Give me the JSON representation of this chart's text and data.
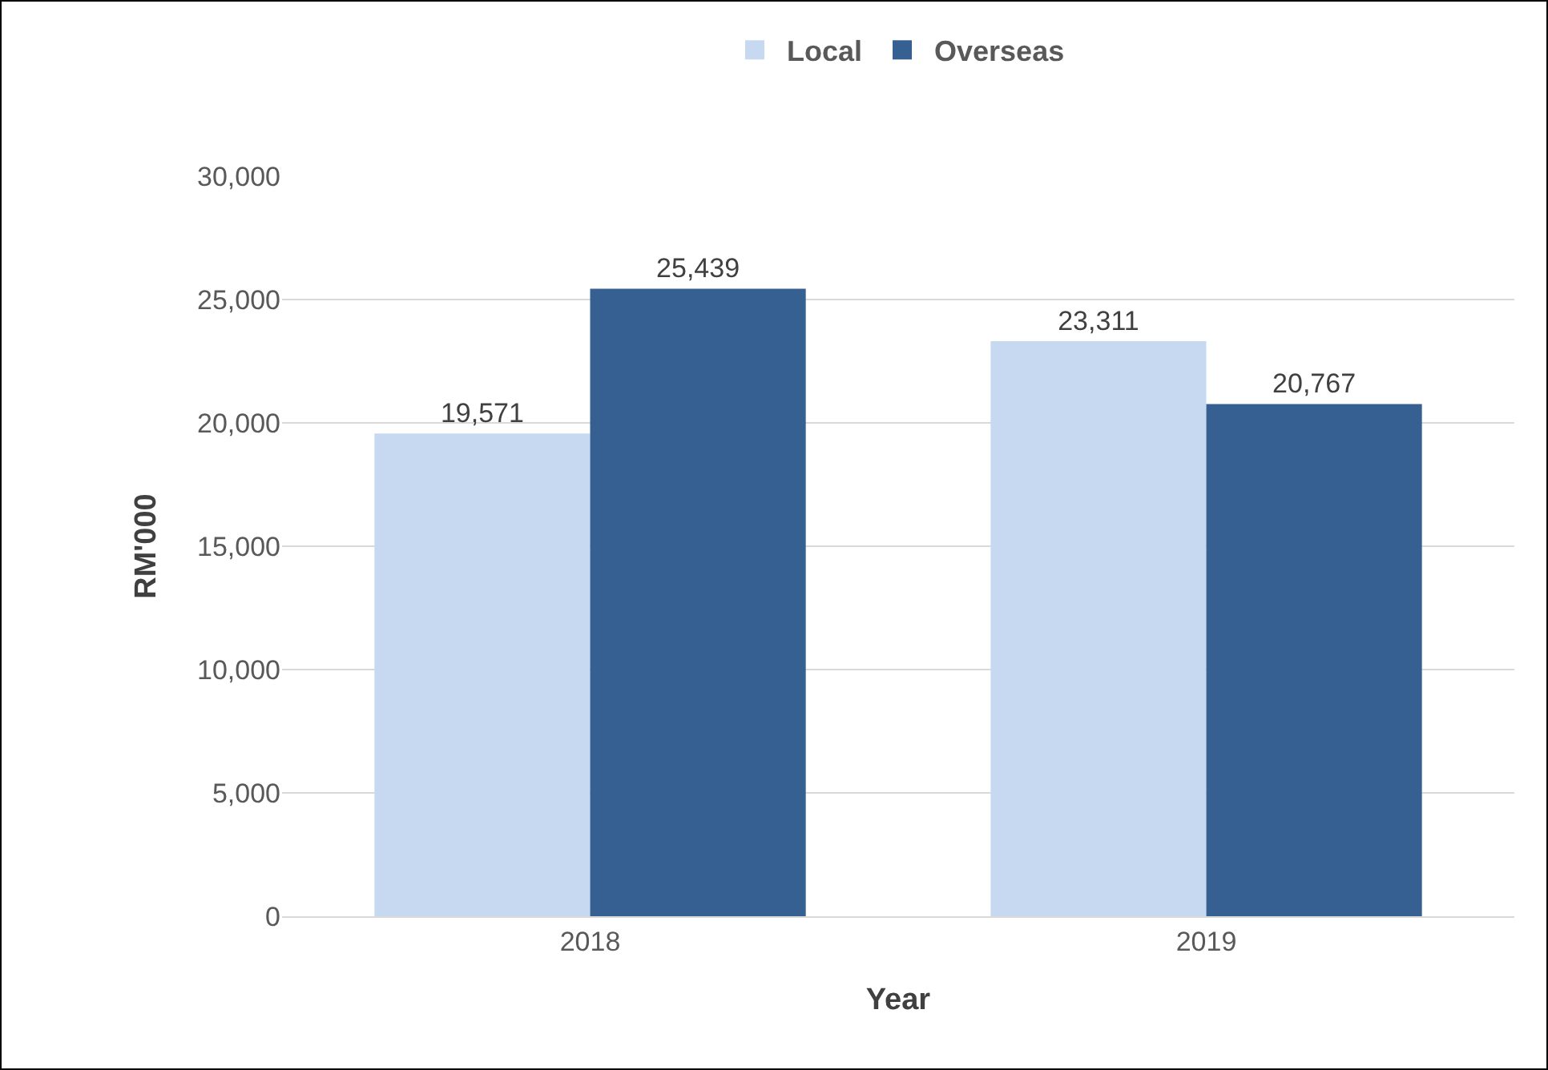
{
  "chart_data": {
    "type": "bar",
    "categories": [
      "2018",
      "2019"
    ],
    "series": [
      {
        "name": "Local",
        "color": "#c6d9f0",
        "values": [
          19571,
          23311
        ],
        "value_labels": [
          "19,571",
          "23,311"
        ]
      },
      {
        "name": "Overseas",
        "color": "#366092",
        "values": [
          25439,
          20767
        ],
        "value_labels": [
          "25,439",
          "20,767"
        ]
      }
    ],
    "xlabel": "Year",
    "ylabel": "RM'000",
    "ylim": [
      0,
      30000
    ],
    "yticks": [
      {
        "value": 0,
        "label": "0"
      },
      {
        "value": 5000,
        "label": "5,000"
      },
      {
        "value": 10000,
        "label": "10,000"
      },
      {
        "value": 15000,
        "label": "15,000"
      },
      {
        "value": 20000,
        "label": "20,000"
      },
      {
        "value": 25000,
        "label": "25,000"
      },
      {
        "value": 30000,
        "label": "30,000"
      }
    ],
    "grid": "y",
    "legend": "top"
  }
}
